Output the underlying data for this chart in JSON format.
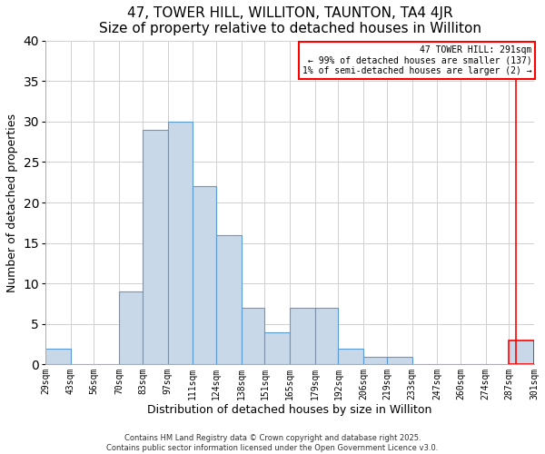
{
  "title": "47, TOWER HILL, WILLITON, TAUNTON, TA4 4JR",
  "subtitle": "Size of property relative to detached houses in Williton",
  "xlabel": "Distribution of detached houses by size in Williton",
  "ylabel": "Number of detached properties",
  "bin_labels": [
    "29sqm",
    "43sqm",
    "56sqm",
    "70sqm",
    "83sqm",
    "97sqm",
    "111sqm",
    "124sqm",
    "138sqm",
    "151sqm",
    "165sqm",
    "179sqm",
    "192sqm",
    "206sqm",
    "219sqm",
    "233sqm",
    "247sqm",
    "260sqm",
    "274sqm",
    "287sqm",
    "301sqm"
  ],
  "bin_edges": [
    29,
    43,
    56,
    70,
    83,
    97,
    111,
    124,
    138,
    151,
    165,
    179,
    192,
    206,
    219,
    233,
    247,
    260,
    274,
    287,
    301
  ],
  "bar_values": [
    2,
    0,
    0,
    9,
    29,
    30,
    22,
    16,
    7,
    4,
    7,
    7,
    2,
    1,
    1,
    0,
    0,
    0,
    0,
    3,
    0
  ],
  "bar_color": "#c8d8e8",
  "bar_edge_color": "#5b9bd5",
  "highlight_bar_index": 19,
  "highlight_bar_color": "#c8d8e8",
  "highlight_bar_edge_color": "#ff0000",
  "vline_x": 291,
  "vline_color": "#ff0000",
  "ylim": [
    0,
    40
  ],
  "yticks": [
    0,
    5,
    10,
    15,
    20,
    25,
    30,
    35,
    40
  ],
  "legend_title": "47 TOWER HILL: 291sqm",
  "legend_line1": "← 99% of detached houses are smaller (137)",
  "legend_line2": "1% of semi-detached houses are larger (2) →",
  "legend_box_color": "#ffffff",
  "legend_box_edge_color": "#ff0000",
  "footer_line1": "Contains HM Land Registry data © Crown copyright and database right 2025.",
  "footer_line2": "Contains public sector information licensed under the Open Government Licence v3.0.",
  "background_color": "#ffffff",
  "grid_color": "#d0d0d0"
}
